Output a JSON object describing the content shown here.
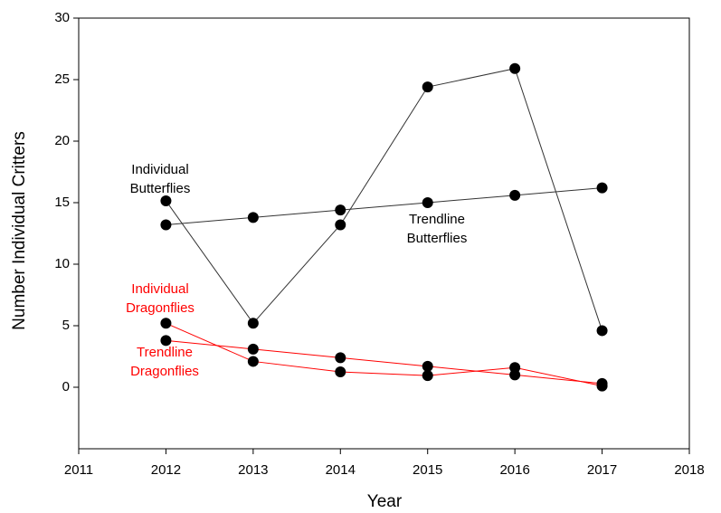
{
  "chart_data": {
    "type": "line",
    "x_label": "Year",
    "y_label": "Number Individual Critters",
    "x": [
      2012,
      2013,
      2014,
      2015,
      2016,
      2017
    ],
    "series": [
      {
        "color": "#333333",
        "marker_color": "#000000",
        "values": [
          15.15,
          5.2,
          13.2,
          24.4,
          25.9,
          4.6
        ]
      },
      {
        "color": "#333333",
        "marker_color": "#000000",
        "values": [
          13.2,
          13.8,
          14.4,
          15.0,
          15.6,
          16.2
        ]
      },
      {
        "color": "#ff0000",
        "marker_color": "#000000",
        "values": [
          5.2,
          2.1,
          1.25,
          0.95,
          1.6,
          0.1
        ]
      },
      {
        "color": "#ff0000",
        "marker_color": "#000000",
        "values": [
          3.8,
          3.1,
          2.4,
          1.7,
          1.0,
          0.3
        ]
      }
    ],
    "xlim": [
      2011,
      2018
    ],
    "xticks": [
      2011,
      2012,
      2013,
      2014,
      2015,
      2016,
      2017,
      2018
    ],
    "ylim": [
      -5,
      30
    ],
    "yticks": [
      0,
      5,
      10,
      15,
      20,
      25,
      30
    ],
    "annotations": [
      {
        "lines": [
          "Individual",
          "Butterflies"
        ],
        "color": "#000000"
      },
      {
        "lines": [
          "Trendline",
          "Butterflies"
        ],
        "color": "#000000"
      },
      {
        "lines": [
          "Individual",
          "Dragonflies"
        ],
        "color": "#ff0000"
      },
      {
        "lines": [
          "Trendline",
          "Dragonflies"
        ],
        "color": "#ff0000"
      }
    ]
  }
}
